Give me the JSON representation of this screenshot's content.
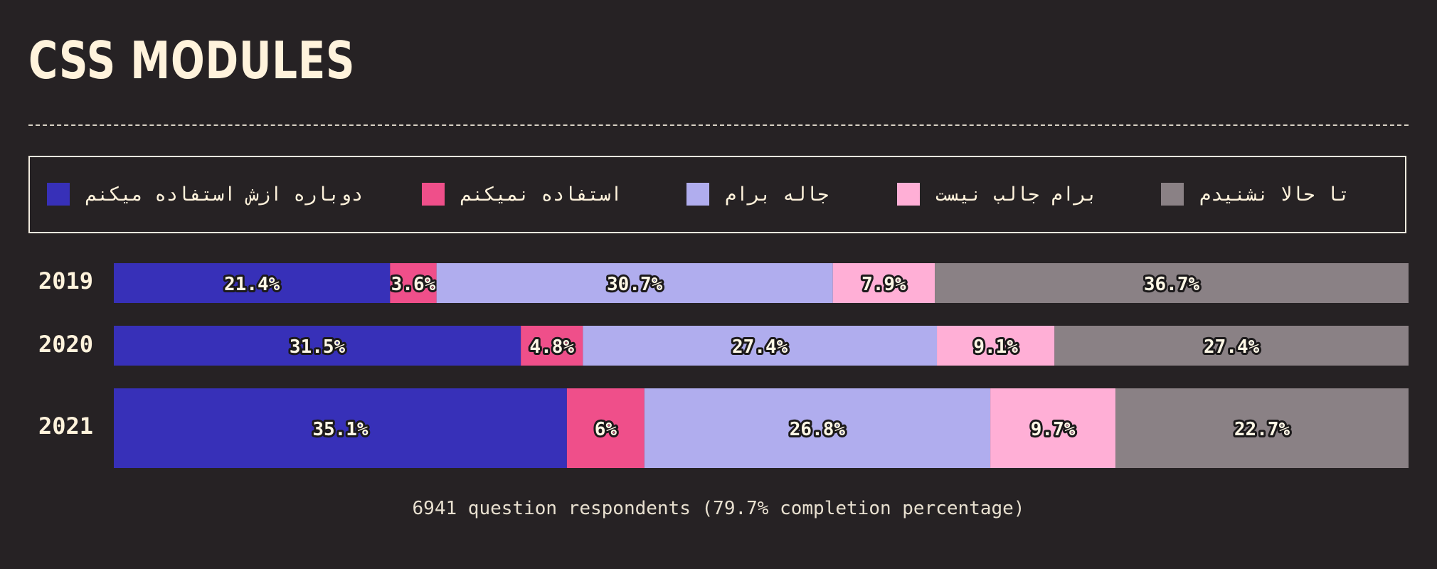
{
  "title": "CSS MODULES",
  "legend": [
    {
      "label": "دوباره ازش استفاده میکنم",
      "color": "#3730b8"
    },
    {
      "label": "استفاده نمیکنم",
      "color": "#ef4f8a"
    },
    {
      "label": "جاله برام",
      "color": "#b0adee"
    },
    {
      "label": "برام جالب نیست",
      "color": "#ffafd6"
    },
    {
      "label": "تا حالا نشنیدم",
      "color": "#8a8185"
    }
  ],
  "chart_data": {
    "type": "bar",
    "orientation": "horizontal-stacked-100",
    "categories": [
      "2019",
      "2020",
      "2021"
    ],
    "series": [
      {
        "name": "دوباره ازش استفاده میکنم",
        "values": [
          21.4,
          31.5,
          35.1
        ],
        "labels": [
          "21.4%",
          "31.5%",
          "35.1%"
        ]
      },
      {
        "name": "استفاده نمیکنم",
        "values": [
          3.6,
          4.8,
          6
        ],
        "labels": [
          "3.6%",
          "4.8%",
          "6%"
        ]
      },
      {
        "name": "جاله برام",
        "values": [
          30.7,
          27.4,
          26.8
        ],
        "labels": [
          "30.7%",
          "27.4%",
          "26.8%"
        ]
      },
      {
        "name": "برام جالب نیست",
        "values": [
          7.9,
          9.1,
          9.7
        ],
        "labels": [
          "7.9%",
          "9.1%",
          "9.7%"
        ]
      },
      {
        "name": "تا حالا نشنیدم",
        "values": [
          36.7,
          27.4,
          22.7
        ],
        "labels": [
          "36.7%",
          "27.4%",
          "22.7%"
        ]
      }
    ],
    "xlim": [
      0,
      100
    ],
    "legend_position": "top"
  },
  "footer": "6941 question respondents (79.7% completion percentage)"
}
